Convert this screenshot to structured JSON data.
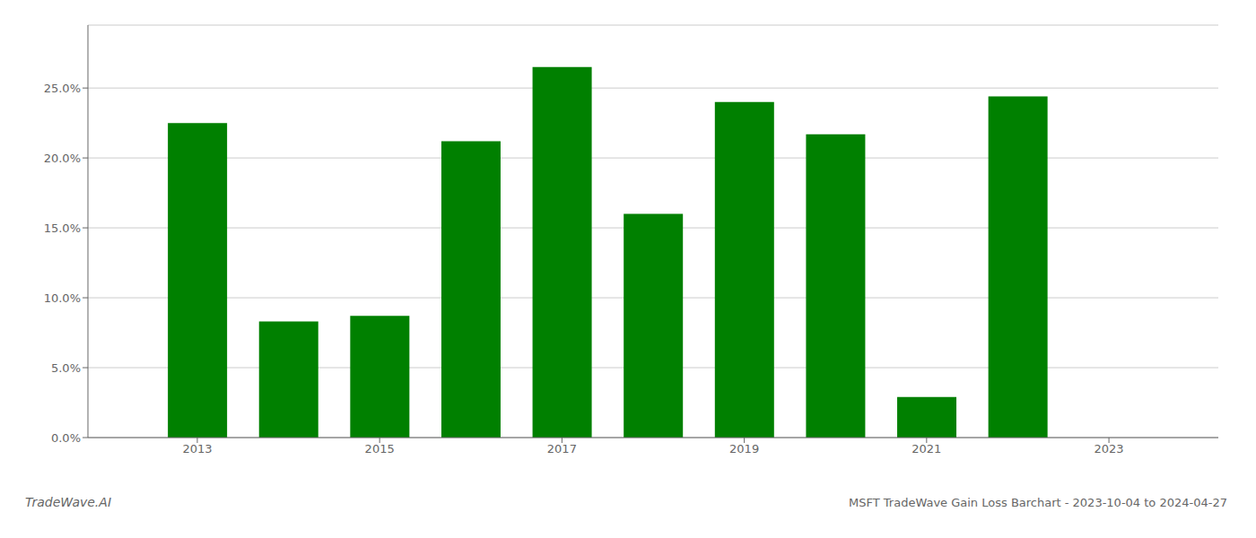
{
  "chart_data": {
    "type": "bar",
    "title": "MSFT TradeWave Gain Loss Barchart - 2023-10-04 to 2024-04-27",
    "annotations": [
      "TradeWave.AI"
    ],
    "x": [
      2013,
      2014,
      2015,
      2016,
      2017,
      2018,
      2019,
      2020,
      2021,
      2022
    ],
    "values": [
      0.225,
      0.083,
      0.087,
      0.212,
      0.265,
      0.16,
      0.24,
      0.217,
      0.029,
      0.244
    ],
    "color": "#008000",
    "xlim": [
      2011.8,
      2024.2
    ],
    "xticks": [
      2013,
      2015,
      2017,
      2019,
      2021,
      2023
    ],
    "ylim": [
      0,
      0.295
    ],
    "yticks": [
      {
        "value": 0.0,
        "label": "0.0%"
      },
      {
        "value": 0.05,
        "label": "5.0%"
      },
      {
        "value": 0.1,
        "label": "10.0%"
      },
      {
        "value": 0.15,
        "label": "15.0%"
      },
      {
        "value": 0.2,
        "label": "20.0%"
      },
      {
        "value": 0.25,
        "label": "25.0%"
      }
    ],
    "grid": true
  }
}
